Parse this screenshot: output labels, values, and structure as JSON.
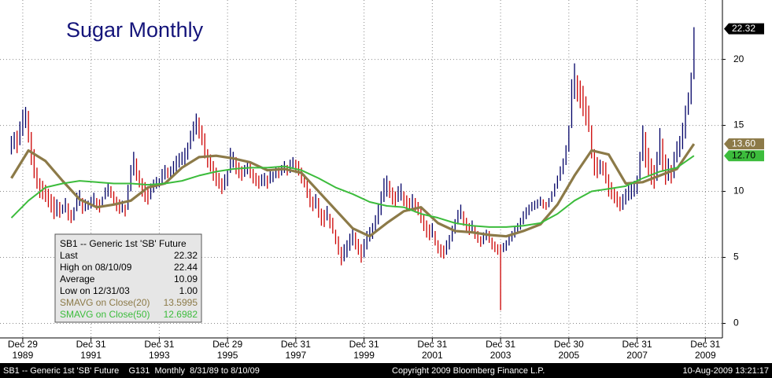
{
  "chart_data": {
    "type": "hilo",
    "title": "Sugar Monthly",
    "xlim": [
      "1989-04",
      "2010-06"
    ],
    "ylim": [
      -1.1,
      24.5
    ],
    "yticks": [
      0,
      5,
      10,
      15,
      20
    ],
    "grid": true,
    "xticks": [
      {
        "value": "1989-12",
        "label": "Dec 29"
      },
      {
        "value": "1991-12",
        "label": "Dec 31"
      },
      {
        "value": "1993-12",
        "label": "Dec 31"
      },
      {
        "value": "1995-12",
        "label": "Dec 29"
      },
      {
        "value": "1997-12",
        "label": "Dec 31"
      },
      {
        "value": "1999-12",
        "label": "Dec 31"
      },
      {
        "value": "2001-12",
        "label": "Dec 31"
      },
      {
        "value": "2003-12",
        "label": "Dec 31"
      },
      {
        "value": "2005-12",
        "label": "Dec 30"
      },
      {
        "value": "2007-12",
        "label": "Dec 31"
      },
      {
        "value": "2009-12",
        "label": "Dec 31"
      }
    ],
    "xtick_years": [
      "1989",
      "1991",
      "1993",
      "1995",
      "1997",
      "1999",
      "2001",
      "2003",
      "2005",
      "2007",
      "2009"
    ],
    "series": [
      {
        "type": "hilo",
        "name": "SB1 -- Generic 1st 'SB' Future",
        "up_color": "#000066",
        "down_color": "#cc0000",
        "last_label": 22.32,
        "label_color": "#000000",
        "label_text_color": "#ffffff",
        "x": [
          "1989-08",
          "1989-09",
          "1989-10",
          "1989-11",
          "1989-12",
          "1990-01",
          "1990-02",
          "1990-03",
          "1990-04",
          "1990-05",
          "1990-06",
          "1990-07",
          "1990-08",
          "1990-09",
          "1990-10",
          "1990-11",
          "1990-12",
          "1991-01",
          "1991-02",
          "1991-03",
          "1991-04",
          "1991-05",
          "1991-06",
          "1991-07",
          "1991-08",
          "1991-09",
          "1991-10",
          "1991-11",
          "1991-12",
          "1992-01",
          "1992-02",
          "1992-03",
          "1992-04",
          "1992-05",
          "1992-06",
          "1992-07",
          "1992-08",
          "1992-09",
          "1992-10",
          "1992-11",
          "1992-12",
          "1993-01",
          "1993-02",
          "1993-03",
          "1993-04",
          "1993-05",
          "1993-06",
          "1993-07",
          "1993-08",
          "1993-09",
          "1993-10",
          "1993-11",
          "1993-12",
          "1994-01",
          "1994-02",
          "1994-03",
          "1994-04",
          "1994-05",
          "1994-06",
          "1994-07",
          "1994-08",
          "1994-09",
          "1994-10",
          "1994-11",
          "1994-12",
          "1995-01",
          "1995-02",
          "1995-03",
          "1995-04",
          "1995-05",
          "1995-06",
          "1995-07",
          "1995-08",
          "1995-09",
          "1995-10",
          "1995-11",
          "1995-12",
          "1996-01",
          "1996-02",
          "1996-03",
          "1996-04",
          "1996-05",
          "1996-06",
          "1996-07",
          "1996-08",
          "1996-09",
          "1996-10",
          "1996-11",
          "1996-12",
          "1997-01",
          "1997-02",
          "1997-03",
          "1997-04",
          "1997-05",
          "1997-06",
          "1997-07",
          "1997-08",
          "1997-09",
          "1997-10",
          "1997-11",
          "1997-12",
          "1998-01",
          "1998-02",
          "1998-03",
          "1998-04",
          "1998-05",
          "1998-06",
          "1998-07",
          "1998-08",
          "1998-09",
          "1998-10",
          "1998-11",
          "1998-12",
          "1999-01",
          "1999-02",
          "1999-03",
          "1999-04",
          "1999-05",
          "1999-06",
          "1999-07",
          "1999-08",
          "1999-09",
          "1999-10",
          "1999-11",
          "1999-12",
          "2000-01",
          "2000-02",
          "2000-03",
          "2000-04",
          "2000-05",
          "2000-06",
          "2000-07",
          "2000-08",
          "2000-09",
          "2000-10",
          "2000-11",
          "2000-12",
          "2001-01",
          "2001-02",
          "2001-03",
          "2001-04",
          "2001-05",
          "2001-06",
          "2001-07",
          "2001-08",
          "2001-09",
          "2001-10",
          "2001-11",
          "2001-12",
          "2002-01",
          "2002-02",
          "2002-03",
          "2002-04",
          "2002-05",
          "2002-06",
          "2002-07",
          "2002-08",
          "2002-09",
          "2002-10",
          "2002-11",
          "2002-12",
          "2003-01",
          "2003-02",
          "2003-03",
          "2003-04",
          "2003-05",
          "2003-06",
          "2003-07",
          "2003-08",
          "2003-09",
          "2003-10",
          "2003-11",
          "2003-12",
          "2004-01",
          "2004-02",
          "2004-03",
          "2004-04",
          "2004-05",
          "2004-06",
          "2004-07",
          "2004-08",
          "2004-09",
          "2004-10",
          "2004-11",
          "2004-12",
          "2005-01",
          "2005-02",
          "2005-03",
          "2005-04",
          "2005-05",
          "2005-06",
          "2005-07",
          "2005-08",
          "2005-09",
          "2005-10",
          "2005-11",
          "2005-12",
          "2006-01",
          "2006-02",
          "2006-03",
          "2006-04",
          "2006-05",
          "2006-06",
          "2006-07",
          "2006-08",
          "2006-09",
          "2006-10",
          "2006-11",
          "2006-12",
          "2007-01",
          "2007-02",
          "2007-03",
          "2007-04",
          "2007-05",
          "2007-06",
          "2007-07",
          "2007-08",
          "2007-09",
          "2007-10",
          "2007-11",
          "2007-12",
          "2008-01",
          "2008-02",
          "2008-03",
          "2008-04",
          "2008-05",
          "2008-06",
          "2008-07",
          "2008-08",
          "2008-09",
          "2008-10",
          "2008-11",
          "2008-12",
          "2009-01",
          "2009-02",
          "2009-03",
          "2009-04",
          "2009-05",
          "2009-06",
          "2009-07",
          "2009-08"
        ],
        "highs": [
          14.2,
          14.5,
          14.6,
          15.3,
          16.2,
          16.4,
          16.1,
          14.5,
          13.2,
          11.8,
          11.0,
          10.8,
          10.5,
          10.2,
          9.8,
          9.6,
          9.4,
          9.2,
          9.0,
          9.5,
          9.1,
          8.6,
          8.8,
          9.9,
          10.1,
          9.5,
          9.4,
          9.3,
          9.6,
          9.9,
          9.5,
          9.4,
          9.6,
          10.3,
          10.6,
          10.4,
          10.0,
          9.6,
          9.4,
          9.3,
          9.0,
          10.5,
          12.0,
          13.0,
          12.5,
          11.6,
          11.0,
          10.7,
          10.3,
          10.6,
          10.9,
          11.1,
          11.0,
          11.7,
          12.0,
          11.8,
          11.9,
          12.3,
          12.7,
          12.9,
          13.0,
          13.3,
          13.7,
          14.6,
          15.3,
          15.9,
          15.6,
          15.0,
          14.4,
          13.2,
          12.8,
          12.3,
          11.8,
          11.4,
          11.0,
          11.3,
          11.6,
          13.3,
          13.0,
          12.6,
          12.2,
          11.9,
          12.0,
          12.3,
          12.1,
          11.7,
          11.4,
          11.2,
          11.3,
          11.4,
          11.2,
          11.6,
          11.5,
          11.9,
          11.8,
          12.0,
          12.3,
          12.0,
          12.4,
          12.6,
          12.4,
          12.3,
          11.8,
          11.3,
          10.8,
          10.2,
          9.6,
          9.8,
          9.5,
          8.7,
          8.6,
          8.9,
          8.3,
          8.0,
          7.1,
          6.6,
          5.8,
          6.0,
          6.3,
          6.8,
          7.2,
          6.9,
          6.4,
          6.0,
          6.4,
          7.0,
          7.3,
          7.6,
          8.2,
          9.0,
          10.0,
          11.0,
          11.2,
          10.8,
          10.3,
          10.0,
          10.4,
          10.6,
          10.0,
          9.7,
          9.5,
          9.8,
          9.5,
          9.2,
          8.8,
          8.2,
          7.8,
          7.5,
          7.6,
          7.0,
          6.3,
          6.0,
          5.9,
          6.3,
          6.7,
          7.4,
          7.9,
          8.6,
          9.0,
          8.5,
          8.0,
          7.6,
          7.8,
          7.4,
          7.0,
          6.6,
          6.9,
          7.1,
          7.0,
          6.5,
          6.2,
          6.0,
          6.0,
          6.1,
          6.3,
          6.7,
          7.0,
          7.3,
          7.6,
          8.0,
          8.5,
          8.8,
          9.0,
          9.2,
          9.3,
          9.4,
          9.6,
          9.4,
          9.2,
          9.5,
          10.0,
          10.6,
          11.2,
          11.9,
          12.5,
          13.5,
          15.0,
          18.5,
          19.7,
          18.8,
          18.4,
          18.0,
          17.2,
          16.5,
          15.0,
          13.2,
          12.6,
          12.4,
          12.3,
          12.2,
          11.3,
          10.7,
          10.3,
          10.0,
          9.6,
          9.8,
          10.2,
          10.5,
          10.6,
          10.8,
          11.2,
          13.0,
          15.0,
          14.5,
          13.3,
          12.5,
          12.0,
          13.0,
          14.8,
          14.0,
          12.8,
          12.5,
          12.0,
          13.0,
          13.8,
          14.2,
          15.2,
          16.5,
          17.5,
          19.0,
          22.44
        ],
        "lows": [
          12.8,
          13.2,
          12.9,
          13.5,
          14.2,
          14.8,
          13.7,
          12.0,
          11.0,
          10.2,
          9.5,
          9.4,
          9.2,
          8.8,
          8.4,
          7.9,
          8.1,
          8.0,
          8.3,
          8.4,
          7.8,
          7.6,
          7.8,
          8.5,
          8.9,
          8.3,
          8.5,
          8.6,
          8.7,
          8.9,
          8.6,
          8.4,
          8.9,
          9.4,
          9.6,
          9.5,
          9.0,
          8.5,
          8.3,
          8.4,
          8.1,
          8.6,
          10.0,
          11.2,
          10.8,
          10.3,
          9.6,
          9.2,
          9.0,
          9.4,
          9.9,
          10.2,
          10.3,
          10.5,
          10.9,
          11.0,
          11.0,
          11.2,
          11.5,
          11.8,
          12.0,
          12.0,
          12.4,
          13.2,
          13.8,
          14.3,
          14.0,
          13.5,
          12.5,
          11.8,
          11.5,
          10.8,
          10.4,
          10.2,
          9.8,
          10.1,
          10.4,
          11.4,
          11.8,
          11.3,
          11.0,
          10.8,
          11.1,
          11.3,
          11.0,
          10.6,
          10.4,
          10.2,
          10.4,
          10.4,
          10.2,
          10.6,
          10.7,
          11.0,
          11.0,
          11.2,
          11.4,
          11.2,
          11.4,
          11.7,
          11.5,
          11.2,
          10.6,
          10.3,
          9.5,
          8.8,
          8.5,
          8.7,
          8.0,
          7.4,
          7.3,
          7.8,
          7.2,
          6.8,
          6.0,
          5.2,
          4.4,
          4.7,
          5.0,
          5.5,
          5.9,
          5.6,
          5.2,
          4.6,
          5.0,
          5.6,
          6.2,
          6.4,
          6.9,
          7.5,
          8.2,
          9.2,
          9.6,
          9.5,
          9.0,
          8.8,
          9.2,
          9.3,
          8.9,
          8.6,
          8.5,
          8.7,
          8.4,
          8.2,
          7.6,
          7.0,
          6.5,
          6.3,
          6.5,
          5.9,
          5.3,
          5.0,
          4.9,
          5.2,
          5.6,
          6.2,
          6.8,
          7.5,
          7.9,
          7.4,
          7.0,
          6.7,
          6.9,
          6.4,
          6.1,
          5.8,
          6.0,
          6.3,
          6.1,
          5.6,
          5.4,
          5.2,
          1.0,
          5.4,
          5.5,
          5.9,
          6.2,
          6.5,
          6.8,
          7.1,
          7.5,
          7.9,
          8.2,
          8.5,
          8.6,
          8.7,
          8.9,
          8.7,
          8.6,
          8.8,
          9.2,
          9.6,
          10.2,
          10.8,
          11.3,
          12.0,
          13.0,
          14.8,
          17.0,
          16.8,
          16.3,
          15.7,
          15.0,
          14.5,
          12.5,
          11.2,
          11.0,
          11.3,
          11.2,
          10.6,
          9.6,
          9.4,
          9.1,
          8.8,
          8.5,
          8.6,
          9.0,
          9.3,
          9.4,
          9.6,
          9.8,
          10.8,
          12.3,
          11.8,
          11.2,
          10.5,
          10.2,
          10.8,
          12.0,
          11.5,
          10.5,
          10.8,
          10.6,
          11.0,
          12.2,
          12.6,
          13.2,
          14.0,
          15.8,
          16.6,
          18.5
        ]
      },
      {
        "type": "line",
        "name": "SMAVG on Close(20)",
        "legend_value": 13.5995,
        "last_label": "13.60",
        "color": "#8c7a48",
        "label_color": "#8c7a48",
        "label_text_color": "#ffffff",
        "width": 3.2,
        "x": [
          "1989-08",
          "1990-02",
          "1990-08",
          "1991-02",
          "1991-08",
          "1992-02",
          "1992-08",
          "1993-02",
          "1993-08",
          "1994-02",
          "1994-08",
          "1995-02",
          "1995-08",
          "1996-02",
          "1996-08",
          "1997-02",
          "1997-08",
          "1998-02",
          "1998-08",
          "1999-02",
          "1999-08",
          "2000-02",
          "2000-08",
          "2001-02",
          "2001-08",
          "2002-02",
          "2002-08",
          "2003-02",
          "2003-08",
          "2004-02",
          "2004-08",
          "2005-02",
          "2005-08",
          "2006-02",
          "2006-08",
          "2007-02",
          "2007-08",
          "2008-02",
          "2008-08",
          "2009-02",
          "2009-08"
        ],
        "values": [
          11.0,
          13.1,
          12.3,
          10.8,
          9.4,
          8.8,
          9.0,
          9.3,
          10.3,
          10.6,
          11.8,
          12.6,
          12.7,
          12.5,
          12.2,
          11.6,
          11.7,
          11.4,
          10.0,
          8.6,
          7.2,
          6.6,
          7.6,
          8.5,
          8.8,
          7.6,
          7.0,
          6.9,
          6.7,
          6.6,
          7.0,
          7.5,
          9.0,
          11.2,
          13.1,
          12.8,
          10.6,
          10.7,
          11.2,
          11.7,
          13.6
        ]
      },
      {
        "type": "line",
        "name": "SMAVG on Close(50)",
        "legend_value": 12.6982,
        "last_label": "12.70",
        "color": "#3cbc3c",
        "label_color": "#3cbc3c",
        "label_text_color": "#000000",
        "width": 2,
        "x": [
          "1989-08",
          "1990-02",
          "1990-08",
          "1991-02",
          "1991-08",
          "1992-02",
          "1992-08",
          "1993-02",
          "1993-08",
          "1994-02",
          "1994-08",
          "1995-02",
          "1995-08",
          "1996-02",
          "1996-08",
          "1997-02",
          "1997-08",
          "1998-02",
          "1998-08",
          "1999-02",
          "1999-08",
          "2000-02",
          "2000-08",
          "2001-02",
          "2001-08",
          "2002-02",
          "2002-08",
          "2003-02",
          "2003-08",
          "2004-02",
          "2004-08",
          "2005-02",
          "2005-08",
          "2006-02",
          "2006-08",
          "2007-02",
          "2007-08",
          "2008-02",
          "2008-08",
          "2009-02",
          "2009-08"
        ],
        "values": [
          8.0,
          9.3,
          10.3,
          10.6,
          10.8,
          10.7,
          10.6,
          10.6,
          10.5,
          10.6,
          10.8,
          11.2,
          11.5,
          11.7,
          11.8,
          11.8,
          11.9,
          11.6,
          11.0,
          10.3,
          9.8,
          9.2,
          8.9,
          8.8,
          8.3,
          8.0,
          7.6,
          7.4,
          7.3,
          7.3,
          7.4,
          7.6,
          8.3,
          9.3,
          10.0,
          10.2,
          10.4,
          11.0,
          11.5,
          11.8,
          12.7
        ]
      }
    ],
    "legend": {
      "title": "SB1 -- Generic 1st 'SB' Future",
      "rows": [
        [
          "Last",
          "22.32"
        ],
        [
          "High on  08/10/09",
          "22.44"
        ],
        [
          "Average",
          "10.09"
        ],
        [
          "Low on  12/31/03",
          "1.00"
        ]
      ]
    },
    "footer": {
      "left": "SB1 -- Generic 1st 'SB' Future    G131  Monthly  8/31/89 to 8/10/09",
      "center": "Copyright 2009 Bloomberg Finance L.P.",
      "right": "10-Aug-2009 13:21:17"
    }
  }
}
